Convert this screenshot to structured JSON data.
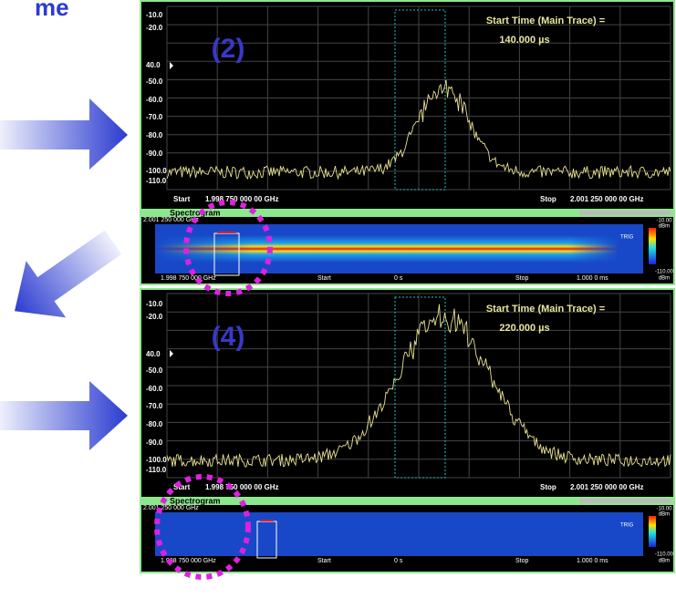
{
  "slide": {
    "title_fragment": "me"
  },
  "panels": [
    {
      "label": "(2)",
      "start_time_label": "Start Time (Main Trace) =",
      "start_time": "140.000 µs",
      "y_labels": [
        "-10.0",
        "-20.0",
        "40.0",
        "-50.0",
        "-60.0",
        "-70.0",
        "-80.0",
        "-90.0",
        "-100.0",
        "-110.0"
      ],
      "start": "Start",
      "start_freq": "1.998 750 000 00 GHz",
      "stop": "Stop",
      "stop_freq": "2.001 250 000 00 GHz",
      "spectrogram": {
        "title": "Spectrogram",
        "top_freq": "2.001 250 000 GHz",
        "bottom_freq": "1.998 750 000 GHz",
        "start": "Start",
        "start_time": "0 s",
        "stop": "Stop",
        "stop_time": "1.000 0 ms",
        "scale_top": "-10.00",
        "scale_top_unit": "dBm",
        "trig": "TRIG",
        "scale_bottom": "-110.00",
        "scale_bottom_unit": "dBm"
      }
    },
    {
      "label": "(4)",
      "start_time_label": "Start Time (Main Trace) =",
      "start_time": "220.000 µs",
      "y_labels": [
        "-10.0",
        "-20.0",
        "40.0",
        "-50.0",
        "-60.0",
        "-70.0",
        "-80.0",
        "-90.0",
        "-100.0",
        "-110.0"
      ],
      "start": "Start",
      "start_freq": "1.998 750 000 00 GHz",
      "stop": "Stop",
      "stop_freq": "2.001 250 000 00 GHz",
      "spectrogram": {
        "title": "Spectrogram",
        "top_freq": "2.001 250 000 GHz",
        "bottom_freq": "1.998 750 000 GHz",
        "start": "Start",
        "start_time": "0 s",
        "stop": "Stop",
        "stop_time": "1.000 0 ms",
        "scale_top": "-10.00",
        "scale_top_unit": "dBm",
        "trig": "TRIG",
        "scale_bottom": "-110.00",
        "scale_bottom_unit": "dBm"
      }
    }
  ]
}
